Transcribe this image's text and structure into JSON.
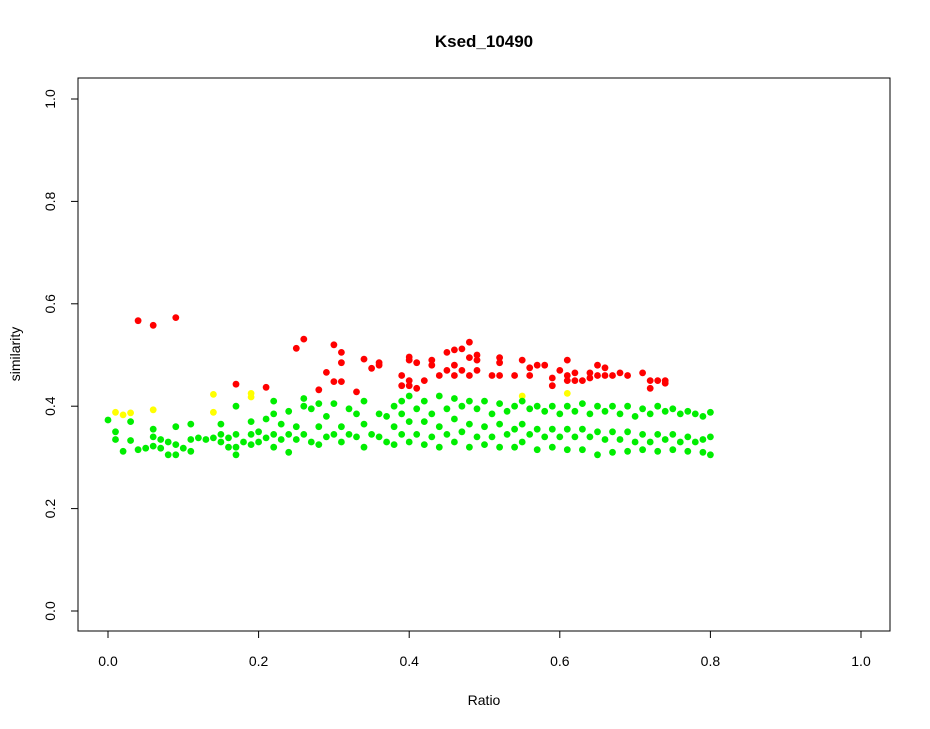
{
  "chart_data": {
    "type": "scatter",
    "title": "Ksed_10490",
    "xlabel": "Ratio",
    "ylabel": "similarity",
    "xlim": [
      0.0,
      1.0
    ],
    "ylim": [
      0.0,
      1.0
    ],
    "x_ticks": [
      "0.0",
      "0.2",
      "0.4",
      "0.6",
      "0.8",
      "1.0"
    ],
    "y_ticks": [
      "0.0",
      "0.2",
      "0.4",
      "0.6",
      "0.8",
      "1.0"
    ],
    "grid": false,
    "legend": "none",
    "colors": {
      "red": "#ff0000",
      "yellow": "#ffff00",
      "green": "#00ee00"
    },
    "series": [
      {
        "color": "red",
        "points": [
          [
            0.04,
            0.567
          ],
          [
            0.06,
            0.558
          ],
          [
            0.09,
            0.573
          ],
          [
            0.17,
            0.443
          ],
          [
            0.21,
            0.437
          ],
          [
            0.25,
            0.513
          ],
          [
            0.26,
            0.531
          ],
          [
            0.28,
            0.432
          ],
          [
            0.29,
            0.466
          ],
          [
            0.3,
            0.52
          ],
          [
            0.3,
            0.448
          ],
          [
            0.31,
            0.505
          ],
          [
            0.31,
            0.485
          ],
          [
            0.31,
            0.448
          ],
          [
            0.33,
            0.428
          ],
          [
            0.34,
            0.492
          ],
          [
            0.35,
            0.474
          ],
          [
            0.36,
            0.485
          ],
          [
            0.36,
            0.48
          ],
          [
            0.39,
            0.46
          ],
          [
            0.39,
            0.44
          ],
          [
            0.4,
            0.496
          ],
          [
            0.4,
            0.49
          ],
          [
            0.4,
            0.45
          ],
          [
            0.4,
            0.44
          ],
          [
            0.41,
            0.485
          ],
          [
            0.41,
            0.435
          ],
          [
            0.42,
            0.45
          ],
          [
            0.43,
            0.49
          ],
          [
            0.43,
            0.48
          ],
          [
            0.44,
            0.46
          ],
          [
            0.45,
            0.505
          ],
          [
            0.45,
            0.47
          ],
          [
            0.46,
            0.51
          ],
          [
            0.46,
            0.48
          ],
          [
            0.46,
            0.46
          ],
          [
            0.47,
            0.512
          ],
          [
            0.47,
            0.47
          ],
          [
            0.48,
            0.525
          ],
          [
            0.48,
            0.495
          ],
          [
            0.48,
            0.46
          ],
          [
            0.49,
            0.5
          ],
          [
            0.49,
            0.49
          ],
          [
            0.49,
            0.47
          ],
          [
            0.51,
            0.46
          ],
          [
            0.52,
            0.495
          ],
          [
            0.52,
            0.485
          ],
          [
            0.52,
            0.46
          ],
          [
            0.54,
            0.46
          ],
          [
            0.55,
            0.49
          ],
          [
            0.56,
            0.475
          ],
          [
            0.56,
            0.46
          ],
          [
            0.57,
            0.48
          ],
          [
            0.58,
            0.48
          ],
          [
            0.59,
            0.455
          ],
          [
            0.59,
            0.44
          ],
          [
            0.6,
            0.47
          ],
          [
            0.61,
            0.49
          ],
          [
            0.61,
            0.46
          ],
          [
            0.61,
            0.45
          ],
          [
            0.62,
            0.465
          ],
          [
            0.62,
            0.45
          ],
          [
            0.63,
            0.45
          ],
          [
            0.64,
            0.465
          ],
          [
            0.64,
            0.455
          ],
          [
            0.65,
            0.48
          ],
          [
            0.65,
            0.46
          ],
          [
            0.66,
            0.475
          ],
          [
            0.66,
            0.46
          ],
          [
            0.67,
            0.46
          ],
          [
            0.68,
            0.465
          ],
          [
            0.69,
            0.46
          ],
          [
            0.71,
            0.465
          ],
          [
            0.72,
            0.45
          ],
          [
            0.72,
            0.435
          ],
          [
            0.73,
            0.45
          ],
          [
            0.74,
            0.45
          ],
          [
            0.74,
            0.445
          ]
        ]
      },
      {
        "color": "yellow",
        "points": [
          [
            0.01,
            0.388
          ],
          [
            0.02,
            0.383
          ],
          [
            0.03,
            0.387
          ],
          [
            0.06,
            0.393
          ],
          [
            0.14,
            0.423
          ],
          [
            0.14,
            0.388
          ],
          [
            0.19,
            0.425
          ],
          [
            0.19,
            0.418
          ],
          [
            0.55,
            0.42
          ],
          [
            0.61,
            0.425
          ]
        ]
      },
      {
        "color": "green",
        "points": [
          [
            0.0,
            0.373
          ],
          [
            0.01,
            0.35
          ],
          [
            0.01,
            0.335
          ],
          [
            0.02,
            0.312
          ],
          [
            0.03,
            0.37
          ],
          [
            0.03,
            0.333
          ],
          [
            0.04,
            0.315
          ],
          [
            0.05,
            0.318
          ],
          [
            0.06,
            0.355
          ],
          [
            0.06,
            0.34
          ],
          [
            0.06,
            0.322
          ],
          [
            0.07,
            0.335
          ],
          [
            0.07,
            0.318
          ],
          [
            0.08,
            0.33
          ],
          [
            0.08,
            0.305
          ],
          [
            0.09,
            0.36
          ],
          [
            0.09,
            0.325
          ],
          [
            0.09,
            0.305
          ],
          [
            0.1,
            0.318
          ],
          [
            0.11,
            0.365
          ],
          [
            0.11,
            0.335
          ],
          [
            0.11,
            0.312
          ],
          [
            0.12,
            0.338
          ],
          [
            0.13,
            0.335
          ],
          [
            0.14,
            0.338
          ],
          [
            0.15,
            0.365
          ],
          [
            0.15,
            0.345
          ],
          [
            0.15,
            0.33
          ],
          [
            0.16,
            0.338
          ],
          [
            0.16,
            0.32
          ],
          [
            0.17,
            0.4
          ],
          [
            0.17,
            0.345
          ],
          [
            0.17,
            0.32
          ],
          [
            0.17,
            0.305
          ],
          [
            0.18,
            0.33
          ],
          [
            0.19,
            0.37
          ],
          [
            0.19,
            0.345
          ],
          [
            0.19,
            0.325
          ],
          [
            0.2,
            0.35
          ],
          [
            0.2,
            0.33
          ],
          [
            0.21,
            0.375
          ],
          [
            0.21,
            0.338
          ],
          [
            0.22,
            0.41
          ],
          [
            0.22,
            0.385
          ],
          [
            0.22,
            0.345
          ],
          [
            0.22,
            0.32
          ],
          [
            0.23,
            0.365
          ],
          [
            0.23,
            0.335
          ],
          [
            0.24,
            0.39
          ],
          [
            0.24,
            0.345
          ],
          [
            0.24,
            0.31
          ],
          [
            0.25,
            0.36
          ],
          [
            0.25,
            0.335
          ],
          [
            0.26,
            0.415
          ],
          [
            0.26,
            0.4
          ],
          [
            0.26,
            0.345
          ],
          [
            0.27,
            0.395
          ],
          [
            0.27,
            0.33
          ],
          [
            0.28,
            0.405
          ],
          [
            0.28,
            0.36
          ],
          [
            0.28,
            0.325
          ],
          [
            0.29,
            0.38
          ],
          [
            0.29,
            0.34
          ],
          [
            0.3,
            0.405
          ],
          [
            0.3,
            0.345
          ],
          [
            0.31,
            0.36
          ],
          [
            0.31,
            0.33
          ],
          [
            0.32,
            0.395
          ],
          [
            0.32,
            0.345
          ],
          [
            0.33,
            0.385
          ],
          [
            0.33,
            0.34
          ],
          [
            0.34,
            0.41
          ],
          [
            0.34,
            0.365
          ],
          [
            0.34,
            0.32
          ],
          [
            0.35,
            0.345
          ],
          [
            0.36,
            0.385
          ],
          [
            0.36,
            0.34
          ],
          [
            0.37,
            0.38
          ],
          [
            0.37,
            0.33
          ],
          [
            0.38,
            0.4
          ],
          [
            0.38,
            0.36
          ],
          [
            0.38,
            0.325
          ],
          [
            0.39,
            0.41
          ],
          [
            0.39,
            0.385
          ],
          [
            0.39,
            0.345
          ],
          [
            0.4,
            0.42
          ],
          [
            0.4,
            0.37
          ],
          [
            0.4,
            0.33
          ],
          [
            0.41,
            0.395
          ],
          [
            0.41,
            0.345
          ],
          [
            0.42,
            0.41
          ],
          [
            0.42,
            0.37
          ],
          [
            0.42,
            0.325
          ],
          [
            0.43,
            0.385
          ],
          [
            0.43,
            0.34
          ],
          [
            0.44,
            0.42
          ],
          [
            0.44,
            0.36
          ],
          [
            0.44,
            0.32
          ],
          [
            0.45,
            0.395
          ],
          [
            0.45,
            0.345
          ],
          [
            0.46,
            0.415
          ],
          [
            0.46,
            0.375
          ],
          [
            0.46,
            0.33
          ],
          [
            0.47,
            0.4
          ],
          [
            0.47,
            0.35
          ],
          [
            0.48,
            0.41
          ],
          [
            0.48,
            0.365
          ],
          [
            0.48,
            0.32
          ],
          [
            0.49,
            0.395
          ],
          [
            0.49,
            0.34
          ],
          [
            0.5,
            0.41
          ],
          [
            0.5,
            0.36
          ],
          [
            0.5,
            0.325
          ],
          [
            0.51,
            0.385
          ],
          [
            0.51,
            0.34
          ],
          [
            0.52,
            0.405
          ],
          [
            0.52,
            0.365
          ],
          [
            0.52,
            0.32
          ],
          [
            0.53,
            0.39
          ],
          [
            0.53,
            0.345
          ],
          [
            0.54,
            0.4
          ],
          [
            0.54,
            0.355
          ],
          [
            0.54,
            0.32
          ],
          [
            0.55,
            0.41
          ],
          [
            0.55,
            0.365
          ],
          [
            0.55,
            0.33
          ],
          [
            0.56,
            0.395
          ],
          [
            0.56,
            0.345
          ],
          [
            0.57,
            0.4
          ],
          [
            0.57,
            0.355
          ],
          [
            0.57,
            0.315
          ],
          [
            0.58,
            0.39
          ],
          [
            0.58,
            0.34
          ],
          [
            0.59,
            0.4
          ],
          [
            0.59,
            0.355
          ],
          [
            0.59,
            0.32
          ],
          [
            0.6,
            0.385
          ],
          [
            0.6,
            0.34
          ],
          [
            0.61,
            0.4
          ],
          [
            0.61,
            0.355
          ],
          [
            0.61,
            0.315
          ],
          [
            0.62,
            0.39
          ],
          [
            0.62,
            0.34
          ],
          [
            0.63,
            0.405
          ],
          [
            0.63,
            0.355
          ],
          [
            0.63,
            0.315
          ],
          [
            0.64,
            0.385
          ],
          [
            0.64,
            0.34
          ],
          [
            0.65,
            0.4
          ],
          [
            0.65,
            0.35
          ],
          [
            0.65,
            0.305
          ],
          [
            0.66,
            0.39
          ],
          [
            0.66,
            0.335
          ],
          [
            0.67,
            0.4
          ],
          [
            0.67,
            0.35
          ],
          [
            0.67,
            0.31
          ],
          [
            0.68,
            0.385
          ],
          [
            0.68,
            0.335
          ],
          [
            0.69,
            0.4
          ],
          [
            0.69,
            0.35
          ],
          [
            0.69,
            0.312
          ],
          [
            0.7,
            0.38
          ],
          [
            0.7,
            0.33
          ],
          [
            0.71,
            0.395
          ],
          [
            0.71,
            0.345
          ],
          [
            0.71,
            0.315
          ],
          [
            0.72,
            0.385
          ],
          [
            0.72,
            0.33
          ],
          [
            0.73,
            0.4
          ],
          [
            0.73,
            0.345
          ],
          [
            0.73,
            0.312
          ],
          [
            0.74,
            0.39
          ],
          [
            0.74,
            0.335
          ],
          [
            0.75,
            0.395
          ],
          [
            0.75,
            0.345
          ],
          [
            0.75,
            0.315
          ],
          [
            0.76,
            0.385
          ],
          [
            0.76,
            0.33
          ],
          [
            0.77,
            0.39
          ],
          [
            0.77,
            0.34
          ],
          [
            0.77,
            0.312
          ],
          [
            0.78,
            0.385
          ],
          [
            0.78,
            0.33
          ],
          [
            0.79,
            0.38
          ],
          [
            0.79,
            0.335
          ],
          [
            0.79,
            0.31
          ],
          [
            0.8,
            0.388
          ],
          [
            0.8,
            0.34
          ],
          [
            0.8,
            0.305
          ]
        ]
      }
    ]
  }
}
